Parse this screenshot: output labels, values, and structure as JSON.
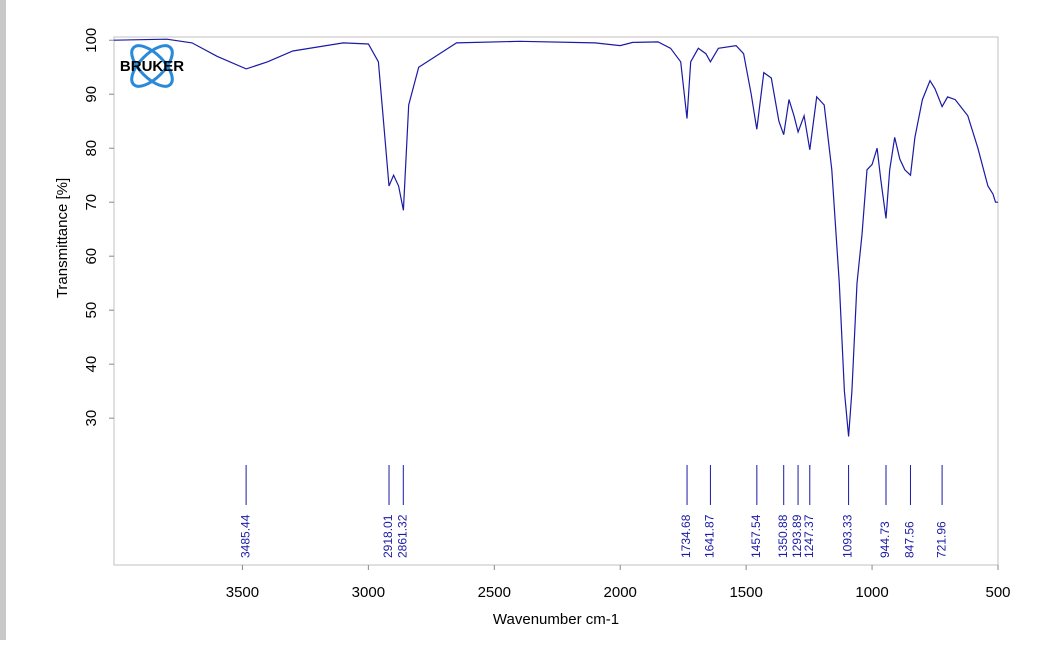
{
  "chart_data": {
    "type": "line",
    "logo": "BRUKER",
    "xlabel": "Wavenumber cm-1",
    "ylabel": "Transmittance [%]",
    "xlim": [
      4010,
      500
    ],
    "ylim": [
      2.8,
      100.6
    ],
    "xticks": [
      3500,
      3000,
      2500,
      2000,
      1500,
      1000,
      500
    ],
    "yticks": [
      30,
      40,
      50,
      60,
      70,
      80,
      90,
      100
    ],
    "color": "#1a1aa6",
    "x": [
      4010,
      3800,
      3700,
      3600,
      3485,
      3400,
      3300,
      3100,
      3000,
      2960,
      2940,
      2918,
      2900,
      2880,
      2861,
      2840,
      2800,
      2700,
      2650,
      2400,
      2100,
      2000,
      1950,
      1850,
      1800,
      1760,
      1734.68,
      1720,
      1690,
      1660,
      1641.87,
      1610,
      1540,
      1510,
      1480,
      1457.54,
      1430,
      1400,
      1370,
      1350.88,
      1330,
      1310,
      1293.89,
      1270,
      1247.37,
      1220,
      1190,
      1160,
      1130,
      1110,
      1093.33,
      1080,
      1060,
      1040,
      1020,
      1000,
      980,
      965,
      944.73,
      930,
      910,
      890,
      870,
      847.56,
      830,
      800,
      770,
      750,
      721.96,
      700,
      670,
      620,
      580,
      540,
      520,
      510,
      500
    ],
    "values": [
      100,
      100.2,
      99.5,
      97,
      94.7,
      96,
      98,
      99.5,
      99.3,
      96,
      85,
      73,
      75,
      73,
      68.5,
      88,
      95,
      98,
      99.5,
      99.8,
      99.5,
      99,
      99.6,
      99.7,
      98.5,
      96,
      85.5,
      96,
      98.5,
      97.5,
      96,
      98.5,
      99,
      97.5,
      90,
      83.5,
      94,
      93,
      85,
      82.5,
      89,
      86,
      83,
      86,
      79.7,
      89.5,
      88,
      76,
      55,
      35,
      26.6,
      35,
      55,
      64,
      76,
      77,
      80,
      74,
      67,
      76,
      82,
      78,
      76,
      75,
      82,
      89,
      92.5,
      91,
      87.7,
      89.5,
      89,
      86,
      80,
      73,
      71.5,
      70,
      70
    ],
    "peaks": [
      3485.44,
      2918.01,
      2861.32,
      1734.68,
      1641.87,
      1457.54,
      1350.88,
      1293.89,
      1247.37,
      1093.33,
      944.73,
      847.56,
      721.96
    ]
  }
}
